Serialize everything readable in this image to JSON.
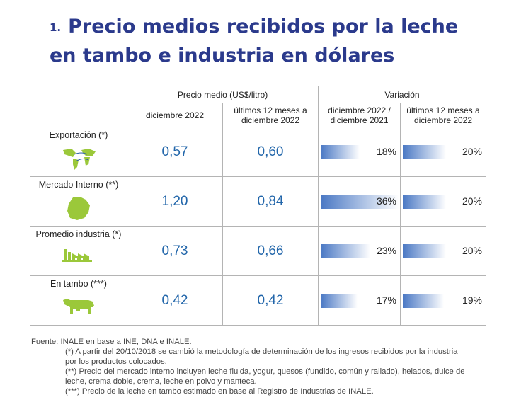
{
  "title": {
    "number": "1.",
    "text": "Precio medios recibidos por la leche en tambo e industria en dólares"
  },
  "headers": {
    "group_price": "Precio medio (US$/litro)",
    "group_variation": "Variación",
    "col1": "diciembre 2022",
    "col2": "últimos 12 meses a diciembre 2022",
    "col3": "diciembre 2022 / diciembre 2021",
    "col4": "últimos 12 meses a diciembre 2022"
  },
  "rows": [
    {
      "label": "Exportación (*)",
      "icon": "world-map-icon",
      "price_dec": "0,57",
      "price_12m": "0,60",
      "var_dec": "18%",
      "var_dec_value": 18,
      "var_12m": "20%",
      "var_12m_value": 20
    },
    {
      "label": "Mercado Interno (**)",
      "icon": "uruguay-map-icon",
      "price_dec": "1,20",
      "price_12m": "0,84",
      "var_dec": "36%",
      "var_dec_value": 36,
      "var_12m": "20%",
      "var_12m_value": 20
    },
    {
      "label": "Promedio industria (*)",
      "icon": "factory-icon",
      "price_dec": "0,73",
      "price_12m": "0,66",
      "var_dec": "23%",
      "var_dec_value": 23,
      "var_12m": "20%",
      "var_12m_value": 20
    },
    {
      "label": "En tambo (***)",
      "icon": "cow-icon",
      "price_dec": "0,42",
      "price_12m": "0,42",
      "var_dec": "17%",
      "var_dec_value": 17,
      "var_12m": "19%",
      "var_12m_value": 19
    }
  ],
  "colors": {
    "title": "#2b3a8c",
    "value": "#2266aa",
    "bar": "#4a78c4",
    "icon": "#9bc83a"
  },
  "notes": {
    "source": "Fuente: INALE en base a INE, DNA e INALE.",
    "n1": "(*) A partir del 20/10/2018 se cambió la metodología de determinación de los ingresos recibidos por la industria por los productos colocados.",
    "n2": "(**) Precio del mercado interno incluyen leche fluida, yogur, quesos (fundido, común y rallado), helados, dulce de leche, crema doble, crema, leche en polvo y manteca.",
    "n3": "(***) Precio de la leche en tambo estimado en base al Registro de Industrias de INALE."
  }
}
